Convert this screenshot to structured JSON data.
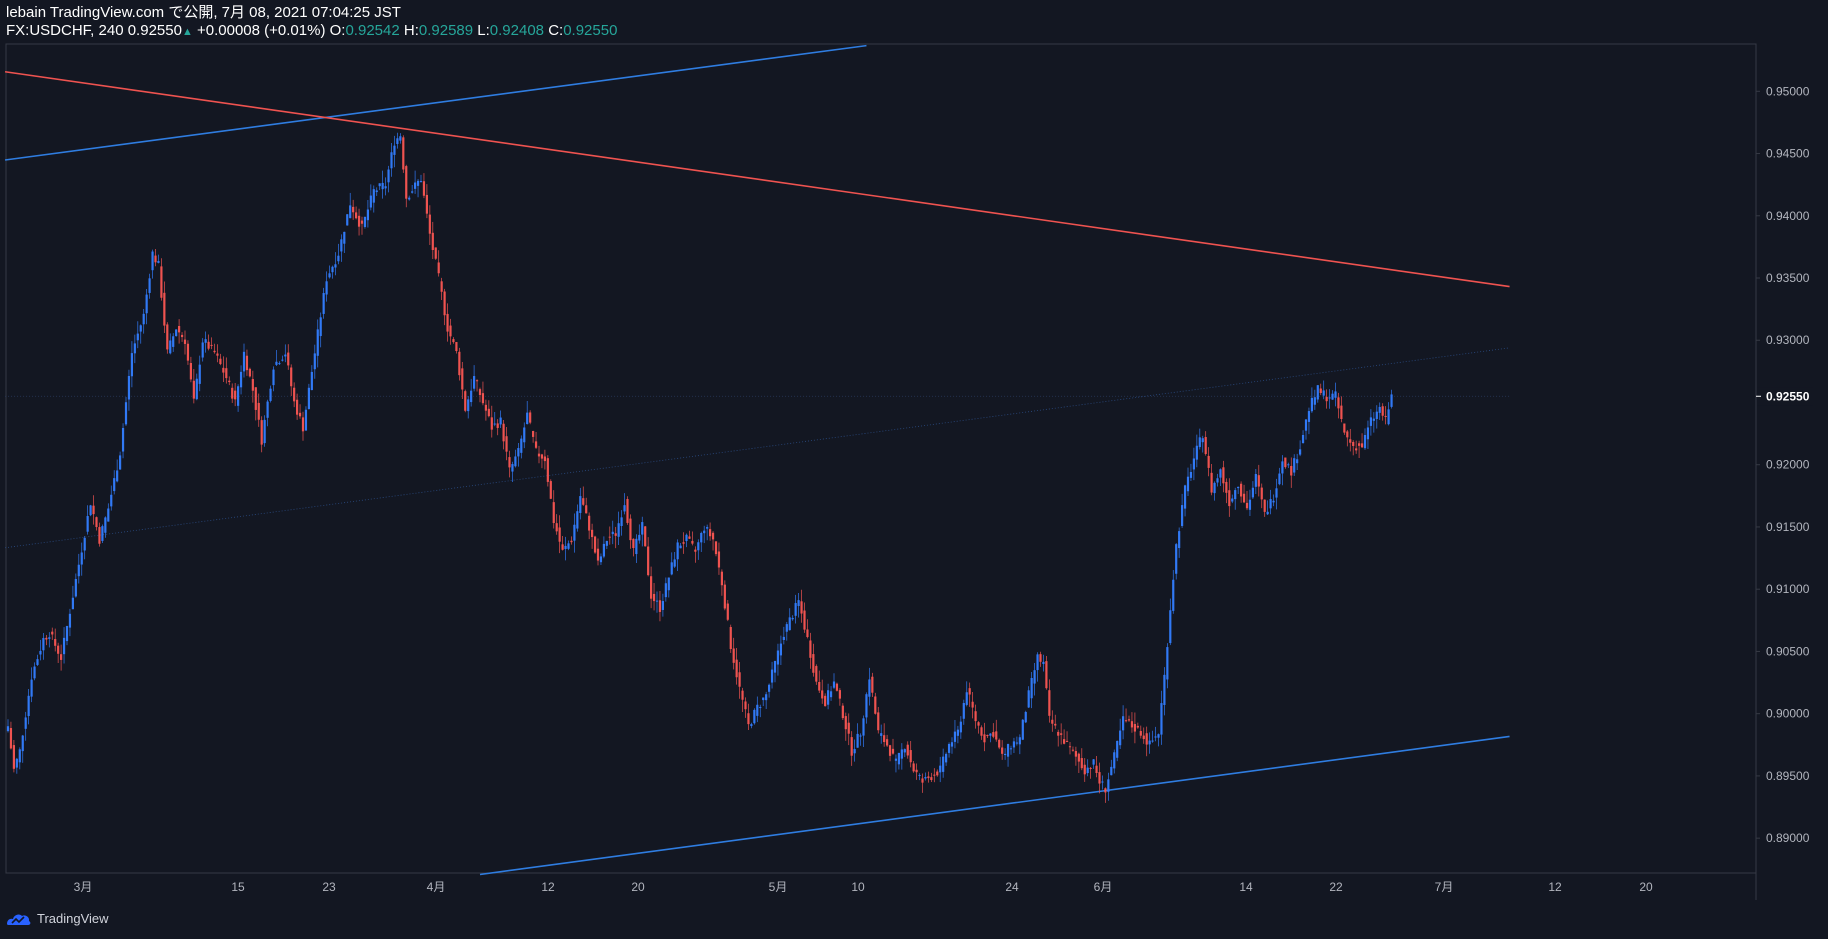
{
  "header": {
    "published": "lebain TradingView.com で公開, 7月 08, 2021 07:04:25 JST",
    "symbol": "FX:USDCHF, 240",
    "last": "0.92550",
    "change": "+0.00008 (+0.01%)",
    "o_label": "O:",
    "o": "0.92542",
    "h_label": "H:",
    "h": "0.92589",
    "l_label": "L:",
    "l": "0.92408",
    "c_label": "C:",
    "c": "0.92550"
  },
  "footer": {
    "brand": "TradingView"
  },
  "colors": {
    "bg": "#131722",
    "up": "#2962ff",
    "down": "#f23645",
    "candle_up": "#3179f5",
    "candle_down": "#ef5350",
    "trend_blue": "#2f7de1",
    "trend_red": "#ef5350"
  },
  "chart_data": {
    "type": "candlestick",
    "symbol": "USDCHF",
    "timeframe": "240",
    "ylim": [
      0.8872,
      0.9538
    ],
    "y_ticks": [
      "0.95000",
      "0.94500",
      "0.94000",
      "0.93500",
      "0.93000",
      "0.92550",
      "0.92000",
      "0.91500",
      "0.91000",
      "0.90500",
      "0.90000",
      "0.89500",
      "0.89000"
    ],
    "x_ticks": [
      "3月",
      "15",
      "23",
      "4月",
      "12",
      "20",
      "5月",
      "10",
      "24",
      "6月",
      "14",
      "22",
      "7月",
      "12",
      "20"
    ],
    "current_price": "0.92550",
    "close_path": [
      [
        0,
        0.899
      ],
      [
        2,
        0.8955
      ],
      [
        4,
        0.897
      ],
      [
        8,
        0.903
      ],
      [
        12,
        0.906
      ],
      [
        14,
        0.9065
      ],
      [
        16,
        0.9055
      ],
      [
        18,
        0.9045
      ],
      [
        20,
        0.907
      ],
      [
        24,
        0.912
      ],
      [
        28,
        0.917
      ],
      [
        31,
        0.914
      ],
      [
        34,
        0.9165
      ],
      [
        38,
        0.921
      ],
      [
        42,
        0.929
      ],
      [
        46,
        0.932
      ],
      [
        49,
        0.937
      ],
      [
        51,
        0.936
      ],
      [
        54,
        0.929
      ],
      [
        57,
        0.931
      ],
      [
        60,
        0.93
      ],
      [
        63,
        0.925
      ],
      [
        66,
        0.93
      ],
      [
        70,
        0.929
      ],
      [
        74,
        0.927
      ],
      [
        77,
        0.925
      ],
      [
        80,
        0.929
      ],
      [
        83,
        0.926
      ],
      [
        86,
        0.922
      ],
      [
        90,
        0.928
      ],
      [
        94,
        0.929
      ],
      [
        97,
        0.925
      ],
      [
        100,
        0.923
      ],
      [
        104,
        0.929
      ],
      [
        108,
        0.935
      ],
      [
        112,
        0.937
      ],
      [
        116,
        0.941
      ],
      [
        120,
        0.939
      ],
      [
        124,
        0.942
      ],
      [
        128,
        0.9425
      ],
      [
        131,
        0.946
      ],
      [
        133,
        0.9465
      ],
      [
        135,
        0.9415
      ],
      [
        140,
        0.943
      ],
      [
        143,
        0.9385
      ],
      [
        146,
        0.935
      ],
      [
        149,
        0.931
      ],
      [
        152,
        0.929
      ],
      [
        155,
        0.9245
      ],
      [
        158,
        0.927
      ],
      [
        161,
        0.925
      ],
      [
        164,
        0.923
      ],
      [
        167,
        0.9235
      ],
      [
        170,
        0.9195
      ],
      [
        173,
        0.921
      ],
      [
        176,
        0.924
      ],
      [
        179,
        0.921
      ],
      [
        182,
        0.9205
      ],
      [
        185,
        0.9155
      ],
      [
        188,
        0.913
      ],
      [
        191,
        0.914
      ],
      [
        194,
        0.9175
      ],
      [
        197,
        0.915
      ],
      [
        200,
        0.912
      ],
      [
        203,
        0.914
      ],
      [
        206,
        0.9145
      ],
      [
        209,
        0.917
      ],
      [
        212,
        0.913
      ],
      [
        215,
        0.915
      ],
      [
        218,
        0.9095
      ],
      [
        221,
        0.9085
      ],
      [
        224,
        0.911
      ],
      [
        227,
        0.9135
      ],
      [
        230,
        0.914
      ],
      [
        233,
        0.913
      ],
      [
        236,
        0.915
      ],
      [
        239,
        0.914
      ],
      [
        242,
        0.9105
      ],
      [
        245,
        0.9055
      ],
      [
        248,
        0.902
      ],
      [
        251,
        0.899
      ],
      [
        254,
        0.9005
      ],
      [
        257,
        0.9015
      ],
      [
        260,
        0.904
      ],
      [
        263,
        0.9065
      ],
      [
        266,
        0.908
      ],
      [
        268,
        0.909
      ],
      [
        271,
        0.906
      ],
      [
        274,
        0.9025
      ],
      [
        277,
        0.901
      ],
      [
        280,
        0.9025
      ],
      [
        283,
        0.9
      ],
      [
        286,
        0.897
      ],
      [
        289,
        0.8985
      ],
      [
        292,
        0.903
      ],
      [
        295,
        0.8985
      ],
      [
        298,
        0.8975
      ],
      [
        301,
        0.896
      ],
      [
        304,
        0.8975
      ],
      [
        307,
        0.8955
      ],
      [
        310,
        0.8945
      ],
      [
        313,
        0.895
      ],
      [
        316,
        0.8955
      ],
      [
        319,
        0.8975
      ],
      [
        322,
        0.8985
      ],
      [
        325,
        0.902
      ],
      [
        328,
        0.8995
      ],
      [
        331,
        0.898
      ],
      [
        334,
        0.8985
      ],
      [
        337,
        0.8965
      ],
      [
        340,
        0.8975
      ],
      [
        343,
        0.898
      ],
      [
        346,
        0.9015
      ],
      [
        349,
        0.9045
      ],
      [
        351,
        0.904
      ],
      [
        353,
        0.8995
      ],
      [
        356,
        0.8985
      ],
      [
        359,
        0.8975
      ],
      [
        362,
        0.8965
      ],
      [
        365,
        0.8955
      ],
      [
        368,
        0.896
      ],
      [
        370,
        0.8945
      ],
      [
        372,
        0.894
      ],
      [
        375,
        0.8965
      ],
      [
        378,
        0.8995
      ],
      [
        381,
        0.899
      ],
      [
        384,
        0.8985
      ],
      [
        387,
        0.8975
      ],
      [
        390,
        0.8985
      ],
      [
        392,
        0.903
      ],
      [
        394,
        0.9085
      ],
      [
        396,
        0.9135
      ],
      [
        399,
        0.918
      ],
      [
        402,
        0.9205
      ],
      [
        405,
        0.9225
      ],
      [
        408,
        0.918
      ],
      [
        411,
        0.9195
      ],
      [
        414,
        0.917
      ],
      [
        417,
        0.9185
      ],
      [
        420,
        0.9165
      ],
      [
        423,
        0.919
      ],
      [
        426,
        0.916
      ],
      [
        429,
        0.9175
      ],
      [
        432,
        0.9205
      ],
      [
        435,
        0.9195
      ],
      [
        438,
        0.9215
      ],
      [
        441,
        0.9245
      ],
      [
        444,
        0.926
      ],
      [
        447,
        0.9255
      ],
      [
        450,
        0.9255
      ],
      [
        453,
        0.9225
      ],
      [
        456,
        0.9215
      ],
      [
        459,
        0.9215
      ],
      [
        462,
        0.9235
      ],
      [
        465,
        0.9245
      ],
      [
        467,
        0.9235
      ],
      [
        469,
        0.9255
      ]
    ],
    "trendlines": [
      {
        "color": "blue",
        "from": [
          -1,
          0.94448
        ],
        "to": [
          291,
          0.95367
        ]
      },
      {
        "color": "red",
        "from": [
          -1,
          0.95157
        ],
        "to": [
          509,
          0.93431
        ]
      },
      {
        "color": "blue",
        "from": [
          160,
          0.88708
        ],
        "to": [
          509,
          0.89817
        ]
      },
      {
        "color": "blue-dotted",
        "from": [
          -1,
          0.91333
        ],
        "to": [
          509,
          0.92939
        ]
      },
      {
        "color": "grid-dotted",
        "from": [
          -1,
          0.9255
        ],
        "to": [
          509,
          0.9255
        ]
      }
    ]
  }
}
